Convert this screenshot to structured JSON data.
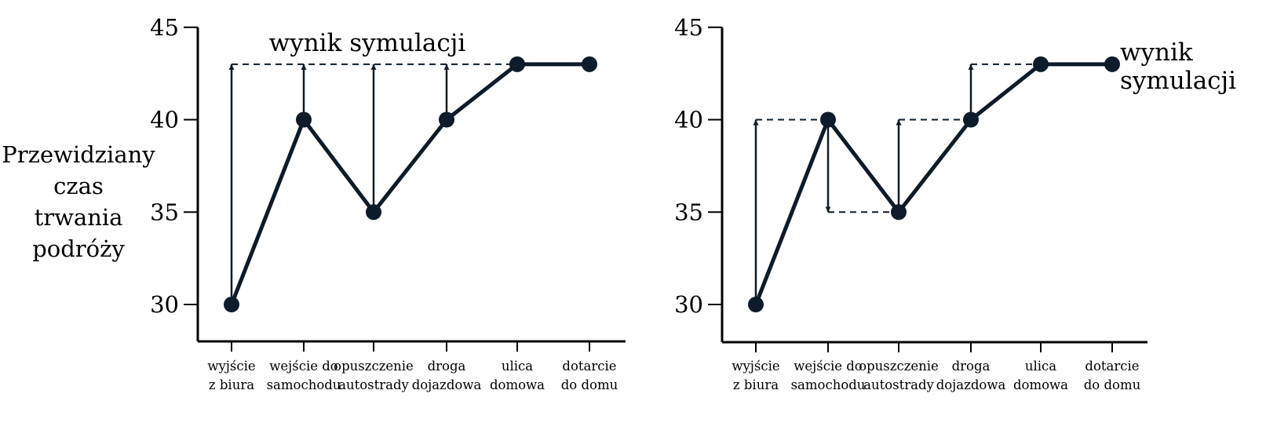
{
  "chart_data": [
    {
      "type": "line",
      "ylabel": [
        "Przewidziany",
        "czas",
        "trwania",
        "podróży"
      ],
      "yticks": [
        30,
        35,
        40,
        45
      ],
      "ylim": [
        28,
        45
      ],
      "categories": [
        [
          "wyjście",
          "z biura"
        ],
        [
          "wejście do",
          "samochodu"
        ],
        [
          "opuszczenie",
          "autostrady"
        ],
        [
          "droga",
          "dojazdowa"
        ],
        [
          "ulica",
          "domowa"
        ],
        [
          "dotarcie",
          "do domu"
        ]
      ],
      "values": [
        30,
        40,
        35,
        40,
        43,
        43
      ],
      "target": 43,
      "annotation": [
        "wynik symulacji"
      ],
      "grid": false,
      "color": "#0d1b2a"
    },
    {
      "type": "line",
      "yticks": [
        30,
        35,
        40,
        45
      ],
      "ylim": [
        28,
        45
      ],
      "categories": [
        [
          "wyjście",
          "z biura"
        ],
        [
          "wejście do",
          "samochodu"
        ],
        [
          "opuszczenie",
          "autostrady"
        ],
        [
          "droga",
          "dojazdowa"
        ],
        [
          "ulica",
          "domowa"
        ],
        [
          "dotarcie",
          "do domu"
        ]
      ],
      "values": [
        30,
        40,
        35,
        40,
        43,
        43
      ],
      "target": 43,
      "annotation": [
        "wynik",
        "symulacji"
      ],
      "grid": false,
      "color": "#0d1b2a"
    }
  ]
}
